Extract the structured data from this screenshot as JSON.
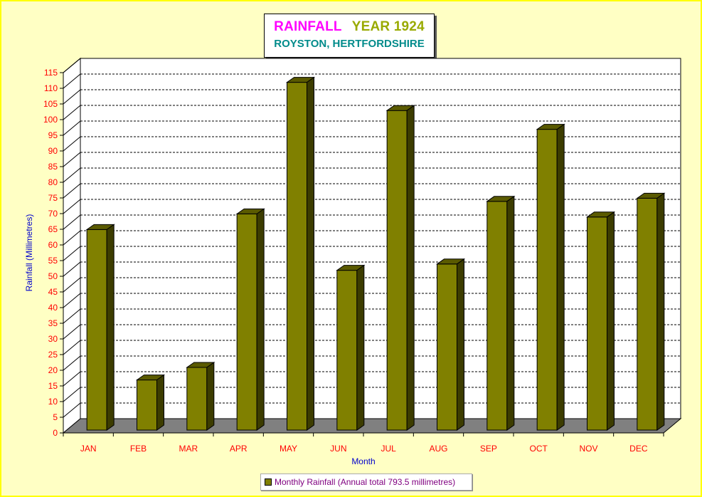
{
  "chart_data": {
    "type": "bar",
    "title_part1": "RAINFALL",
    "title_part2": "YEAR 1924",
    "subtitle": "ROYSTON, HERTFORDSHIRE",
    "xlabel": "Month",
    "ylabel": "Rainfall  (Millimetres)",
    "ylim": [
      0,
      115
    ],
    "ytick_step": 5,
    "grid": true,
    "legend_position": "bottom-center",
    "categories": [
      "JAN",
      "FEB",
      "MAR",
      "APR",
      "MAY",
      "JUN",
      "JUL",
      "AUG",
      "SEP",
      "OCT",
      "NOV",
      "DEC"
    ],
    "series": [
      {
        "name": "Monthly Rainfall (Annual total 793.5 millimetres)",
        "values": [
          64,
          16,
          20,
          69,
          111,
          51,
          102,
          53,
          73,
          96,
          68,
          74
        ]
      }
    ],
    "colors": {
      "bar_front": "#808000",
      "bar_top": "#5a5a00",
      "bar_side": "#3c3c00",
      "floor": "#808080",
      "tick_label": "#ff0000",
      "axis_title": "#0000cc",
      "grid": "#000000"
    }
  }
}
